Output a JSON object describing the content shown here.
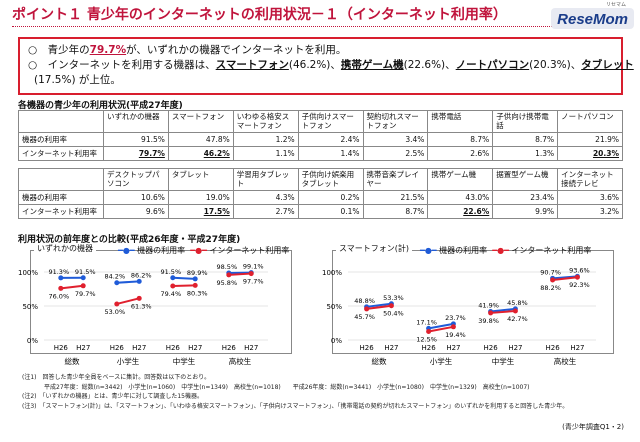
{
  "title": "ポイント１ 青少年のインターネットの利用状況－１（インターネット利用率）",
  "logo": {
    "brand": "ReseMom",
    "small": "リセマム"
  },
  "summary": {
    "line1_pre": "○　青少年の",
    "line1_val": "79.7%",
    "line1_post": "が、いずれかの機器でインターネットを利用。",
    "line2_pre": "○　インターネットを利用する機器は、",
    "item1": "スマートフォン",
    "item1_val": "(46.2%)",
    "sep1": "、",
    "item2": "携帯ゲーム機",
    "item2_val": "(22.6%)",
    "sep2": "、",
    "item3": "ノートパソコン",
    "item3_val": "(20.3%)",
    "sep3": "、",
    "item4": "タブレット",
    "line3": "(17.5%) が上位。"
  },
  "table": {
    "title": "各機器の青少年の利用状況(平成27年度)",
    "row_label_1": "機器の利用率",
    "row_label_2": "インターネット利用率",
    "group1": {
      "headers": [
        "いずれかの機器",
        "スマートフォン",
        "いわゆる格安スマートフォン",
        "子供向けスマートフォン",
        "契約切れスマートフォン",
        "携帯電話",
        "子供向け携帯電話",
        "ノートパソコン"
      ],
      "device_rate": [
        "91.5%",
        "47.8%",
        "1.2%",
        "2.4%",
        "3.4%",
        "8.7%",
        "8.7%",
        "21.9%"
      ],
      "internet_rate": [
        "79.7%",
        "46.2%",
        "1.1%",
        "1.4%",
        "2.5%",
        "2.6%",
        "1.3%",
        "20.3%"
      ]
    },
    "group2": {
      "headers": [
        "デスクトップパソコン",
        "タブレット",
        "学習用タブレット",
        "子供向け娯楽用タブレット",
        "携帯音楽プレイヤー",
        "携帯ゲーム機",
        "据置型ゲーム機",
        "インターネット接続テレビ"
      ],
      "device_rate": [
        "10.6%",
        "19.0%",
        "4.3%",
        "0.2%",
        "21.5%",
        "43.0%",
        "23.4%",
        "3.6%"
      ],
      "internet_rate": [
        "9.6%",
        "17.5%",
        "2.7%",
        "0.1%",
        "8.7%",
        "22.6%",
        "9.9%",
        "3.2%"
      ]
    }
  },
  "chart_section_title": "利用状況の前年度との比較(平成26年度・平成27年度)",
  "legend": {
    "device": "機器の利用率",
    "internet": "インターネット利用率"
  },
  "colors": {
    "device": "#1f5bd8",
    "internet": "#e0202e",
    "accent": "#c0143c"
  },
  "chart_data": [
    {
      "type": "line",
      "panel_label": "いずれかの機器",
      "groups": [
        "総数",
        "小学生",
        "中学生",
        "高校生"
      ],
      "x_ticks": [
        "H26",
        "H27"
      ],
      "ylim": [
        0,
        100
      ],
      "y_ticks": [
        "0%",
        "50%",
        "100%"
      ],
      "series": [
        {
          "name": "機器の利用率",
          "values": [
            [
              91.3,
              91.5
            ],
            [
              84.2,
              86.2
            ],
            [
              91.5,
              89.9
            ],
            [
              98.5,
              99.1
            ]
          ],
          "labels": [
            [
              "91.3%",
              "91.5%"
            ],
            [
              "84.2%",
              "86.2%"
            ],
            [
              "91.5%",
              "89.9%"
            ],
            [
              "98.5%",
              "99.1%"
            ]
          ]
        },
        {
          "name": "インターネット利用率",
          "values": [
            [
              76.0,
              79.7
            ],
            [
              53.0,
              61.3
            ],
            [
              79.4,
              80.3
            ],
            [
              95.8,
              97.7
            ]
          ],
          "labels": [
            [
              "76.0%",
              "79.7%"
            ],
            [
              "53.0%",
              "61.3%"
            ],
            [
              "79.4%",
              "80.3%"
            ],
            [
              "95.8%",
              "97.7%"
            ]
          ]
        }
      ]
    },
    {
      "type": "line",
      "panel_label": "スマートフォン(計)",
      "groups": [
        "総数",
        "小学生",
        "中学生",
        "高校生"
      ],
      "x_ticks": [
        "H26",
        "H27"
      ],
      "ylim": [
        0,
        100
      ],
      "y_ticks": [
        "0%",
        "50%",
        "100%"
      ],
      "series": [
        {
          "name": "機器の利用率",
          "values": [
            [
              48.8,
              53.3
            ],
            [
              17.1,
              23.7
            ],
            [
              41.9,
              45.8
            ],
            [
              90.7,
              93.6
            ]
          ],
          "labels": [
            [
              "48.8%",
              "53.3%"
            ],
            [
              "17.1%",
              "23.7%"
            ],
            [
              "41.9%",
              "45.8%"
            ],
            [
              "90.7%",
              "93.6%"
            ]
          ]
        },
        {
          "name": "インターネット利用率",
          "values": [
            [
              45.7,
              50.4
            ],
            [
              12.5,
              19.4
            ],
            [
              39.8,
              42.7
            ],
            [
              88.2,
              92.3
            ]
          ],
          "labels": [
            [
              "45.7%",
              "50.4%"
            ],
            [
              "12.5%",
              "19.4%"
            ],
            [
              "39.8%",
              "42.7%"
            ],
            [
              "88.2%",
              "92.3%"
            ]
          ]
        }
      ]
    }
  ],
  "notes": {
    "n1": "(注1)　回答した青少年全員をベースに集計。回答数は以下のとおり。",
    "n1b": "平成27年度：総数(n=3442)　小学生(n=1060)　中学生(n=1349)　高校生(n=1018)　　平成26年度：総数(n=3441)　小学生(n=1080)　中学生(n=1329)　高校生(n=1007)",
    "n2": "(注2)　「いずれかの機器」とは、青少年に対して調査した15機器。",
    "n3": "(注3)　「スマートフォン(計)」は、「スマートフォン」、「いわゆる格安スマートフォン」、「子供向けスマートフォン」、「携帯電話の契約が切れたスマートフォン」のいずれかを利用すると回答した青少年。"
  },
  "source": "(青少年調査Q1・2)"
}
